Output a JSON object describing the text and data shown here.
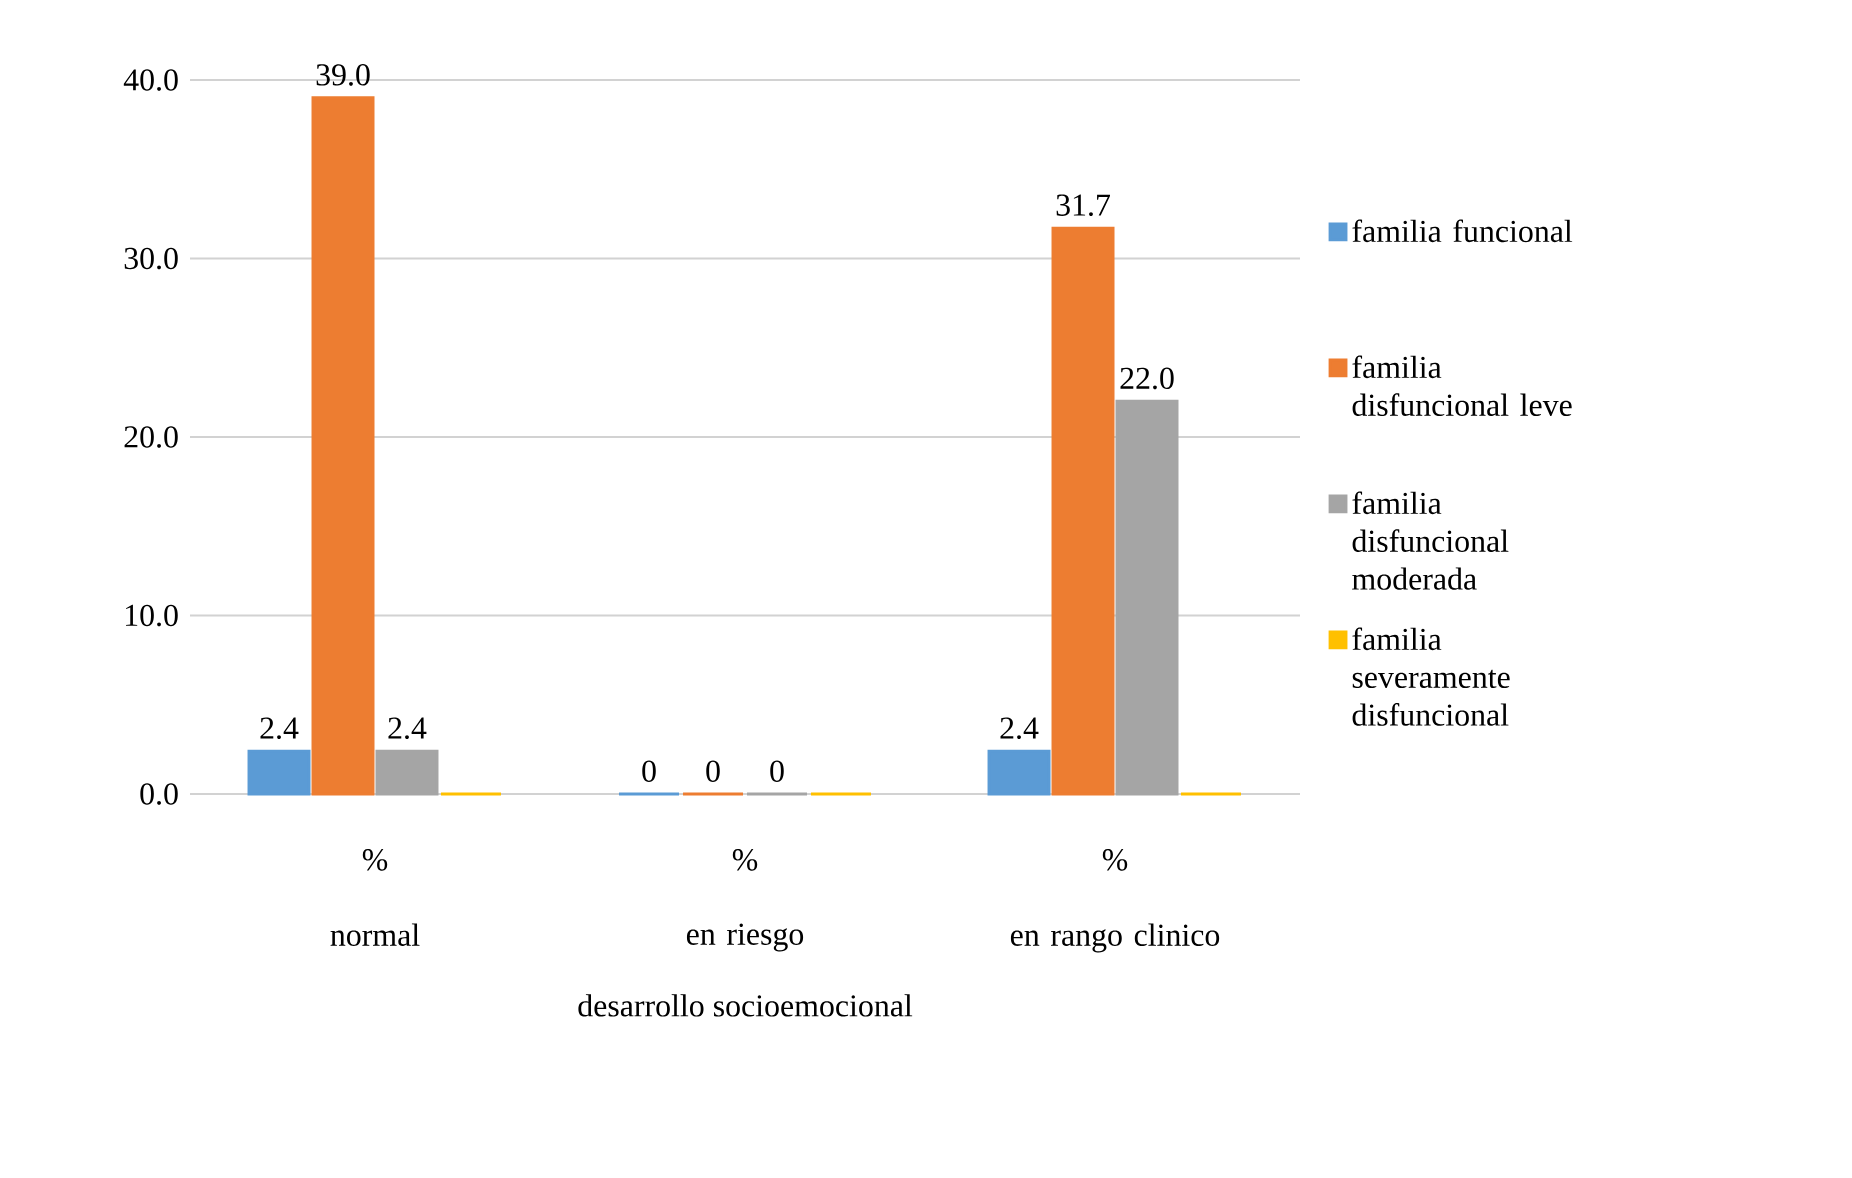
{
  "chart_data": {
    "type": "bar",
    "xlabel": "desarrollo socioemocional",
    "categories": [
      "normal",
      "en riesgo",
      "en rango clinico"
    ],
    "annotations": [
      "%",
      "%",
      "%"
    ],
    "series": [
      {
        "name": "familia funcional",
        "color": "#5b9bd5",
        "values": [
          2.4,
          0,
          2.4
        ],
        "value_labels": [
          "2.4",
          "0",
          "2.4"
        ]
      },
      {
        "name": "familia disfuncional leve",
        "color": "#ed7d31",
        "values": [
          39.0,
          0,
          31.7
        ],
        "value_labels": [
          "39.0",
          "0",
          "31.7"
        ]
      },
      {
        "name": "familia disfuncional moderada",
        "color": "#a5a5a5",
        "values": [
          2.4,
          0,
          22.0
        ],
        "value_labels": [
          "2.4",
          "0",
          "22.0"
        ]
      },
      {
        "name": "familia severamente disfuncional",
        "color": "#ffc000",
        "values": [
          0,
          0,
          0
        ],
        "value_labels": [
          null,
          null,
          null
        ]
      }
    ],
    "ylim": [
      0,
      40
    ],
    "yticks": [
      {
        "value": 0,
        "label": "0.0"
      },
      {
        "value": 10,
        "label": "10.0"
      },
      {
        "value": 20,
        "label": "20.0"
      },
      {
        "value": 30,
        "label": "30.0"
      },
      {
        "value": 40,
        "label": "40.0"
      }
    ],
    "grid": "y",
    "legend": "right"
  }
}
